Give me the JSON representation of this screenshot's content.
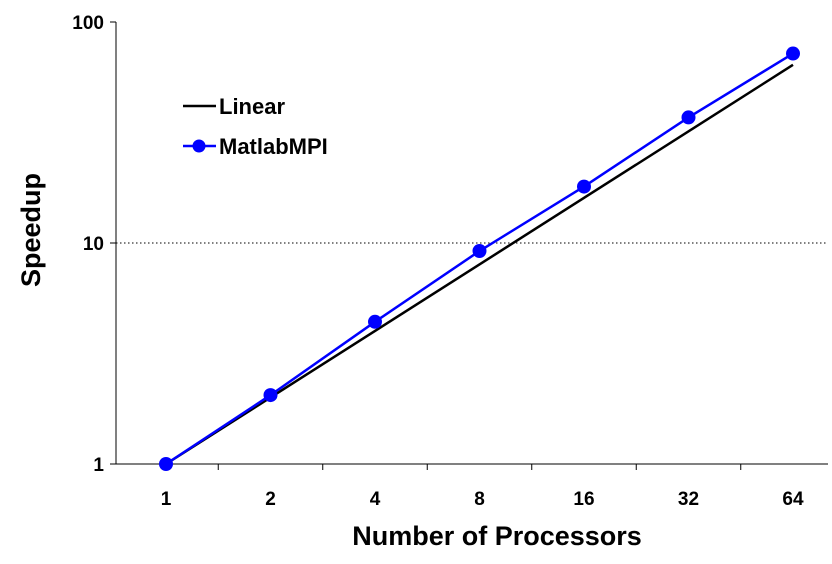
{
  "chart_data": {
    "type": "line",
    "title": "",
    "xlabel": "Number of Processors",
    "ylabel": "Speedup",
    "x_scale": "log2",
    "y_scale": "log10",
    "x_ticks": [
      "1",
      "2",
      "4",
      "8",
      "16",
      "32",
      "64"
    ],
    "y_ticks": [
      "1",
      "10",
      "100"
    ],
    "ylim": [
      1,
      100
    ],
    "grid": "horizontal dotted at 10",
    "legend_position": "top-left",
    "series": [
      {
        "name": "Linear",
        "color": "#000000",
        "marker": "none",
        "x": [
          1,
          64
        ],
        "y": [
          1,
          64
        ]
      },
      {
        "name": "MatlabMPI",
        "color": "#0000ff",
        "marker": "circle",
        "x": [
          1,
          2,
          4,
          8,
          16,
          32,
          64
        ],
        "y": [
          1.0,
          2.05,
          4.4,
          9.2,
          18.0,
          37.0,
          72.0
        ]
      }
    ]
  }
}
